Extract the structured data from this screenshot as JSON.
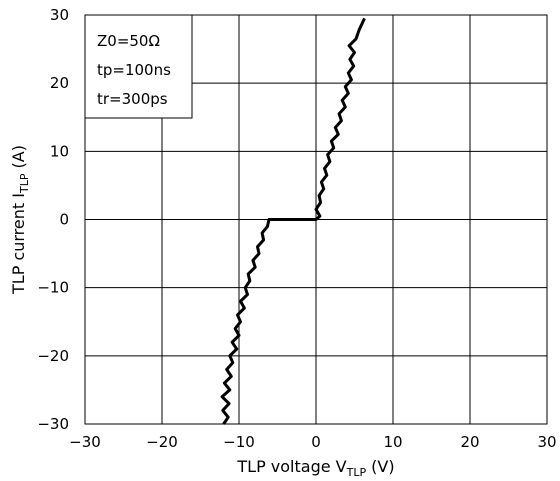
{
  "chart_data": {
    "type": "line",
    "title": "",
    "xlabel": {
      "main": "TLP voltage V",
      "sub": "TLP",
      "unit": " (V)"
    },
    "ylabel": {
      "main": "TLP current I",
      "sub": "TLP",
      "unit": " (A)"
    },
    "xlim": [
      -30,
      30
    ],
    "ylim": [
      -30,
      30
    ],
    "x_ticks": [
      -30,
      -20,
      -10,
      0,
      10,
      20,
      30
    ],
    "y_ticks": [
      -30,
      -20,
      -10,
      0,
      10,
      20,
      30
    ],
    "grid": true,
    "legend": {
      "placement": "top-left",
      "lines": [
        "Z0=50Ω",
        "tp=100ns",
        "tr=300ps"
      ]
    },
    "series": [
      {
        "color": "#000000",
        "x": [
          -12.0,
          -11.4,
          -12.1,
          -11.3,
          -12.2,
          -11.2,
          -11.9,
          -11.0,
          -11.6,
          -10.8,
          -11.2,
          -10.3,
          -10.9,
          -10.0,
          -10.5,
          -9.8,
          -10.2,
          -9.3,
          -9.8,
          -8.9,
          -9.2,
          -8.6,
          -8.8,
          -7.9,
          -8.2,
          -7.4,
          -7.6,
          -6.8,
          -7.0,
          -6.3,
          -6.1,
          -3.0,
          0.0,
          0.5,
          0.0,
          0.6,
          0.4,
          1.0,
          0.7,
          1.4,
          1.1,
          1.8,
          1.5,
          2.3,
          2.0,
          2.9,
          2.5,
          3.3,
          3.0,
          3.8,
          3.4,
          4.2,
          3.8,
          4.6,
          4.2,
          4.9,
          4.4,
          5.0,
          4.3,
          5.2,
          5.6,
          6.3
        ],
        "y": [
          -30.0,
          -29.0,
          -28.0,
          -27.0,
          -26.0,
          -25.0,
          -24.0,
          -23.0,
          -22.0,
          -21.0,
          -20.0,
          -19.0,
          -18.0,
          -17.0,
          -16.0,
          -15.0,
          -14.0,
          -13.0,
          -12.0,
          -11.0,
          -10.0,
          -9.0,
          -8.0,
          -7.0,
          -6.0,
          -5.0,
          -4.0,
          -3.0,
          -2.0,
          -1.0,
          0.0,
          0.0,
          0.0,
          0.5,
          1.5,
          2.5,
          3.5,
          4.5,
          5.5,
          6.5,
          7.5,
          8.5,
          9.5,
          10.5,
          11.5,
          12.5,
          13.5,
          14.5,
          15.5,
          16.5,
          17.5,
          18.5,
          19.5,
          20.5,
          21.5,
          22.5,
          23.5,
          24.5,
          25.5,
          26.5,
          27.8,
          29.5
        ]
      }
    ]
  }
}
